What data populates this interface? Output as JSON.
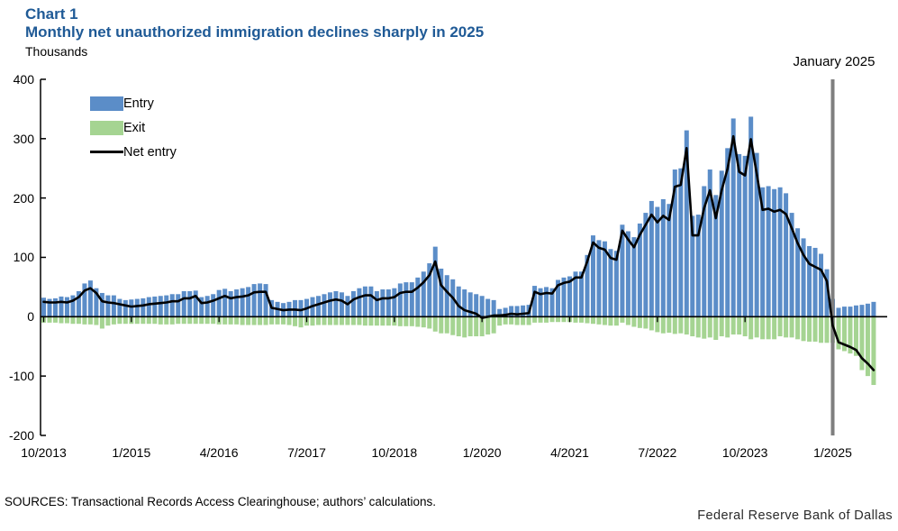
{
  "header": {
    "chart_label": "Chart 1",
    "title": "Monthly net unauthorized immigration declines sharply in 2025",
    "units_label": "Thousands"
  },
  "legend": [
    {
      "label": "Entry",
      "color": "#5b8dc8",
      "marker": "bar"
    },
    {
      "label": "Exit",
      "color": "#a5d492",
      "marker": "bar"
    },
    {
      "label": "Net entry",
      "color": "#000000",
      "marker": "line"
    }
  ],
  "annotation": {
    "label": "January 2025",
    "line_color": "#7f7f7f",
    "month_index": 135
  },
  "footer": {
    "sources": "SOURCES: Transactional Records Access Clearinghouse; authors’ calculations.",
    "attribution": "Federal Reserve Bank of Dallas"
  },
  "colors": {
    "title_blue": "#1f5a96",
    "entry_bar": "#5b8dc8",
    "exit_bar": "#a5d492",
    "net_line": "#000000",
    "annotation_line": "#7f7f7f",
    "axis": "#000000"
  },
  "chart_data": {
    "type": "bar",
    "title": "Monthly net unauthorized immigration declines sharply in 2025",
    "ylabel": "Thousands",
    "ylim": [
      -200,
      400
    ],
    "y_ticks": [
      400,
      300,
      200,
      100,
      0,
      -100,
      -200
    ],
    "frequency": "monthly",
    "start_month": "10/2013",
    "x_tick_indices": [
      0,
      15,
      30,
      45,
      60,
      75,
      90,
      105,
      120,
      135
    ],
    "x_tick_labels": [
      "10/2013",
      "1/2015",
      "4/2016",
      "7/2017",
      "10/2018",
      "1/2020",
      "4/2021",
      "7/2022",
      "10/2023",
      "1/2025"
    ],
    "grid": false,
    "legend_position": "upper-left",
    "series": [
      {
        "name": "Entry",
        "type": "bar",
        "color": "#5b8dc8",
        "values": [
          32,
          30,
          31,
          34,
          33,
          36,
          43,
          56,
          61,
          48,
          40,
          36,
          36,
          30,
          28,
          29,
          30,
          31,
          33,
          34,
          35,
          36,
          38,
          38,
          43,
          43,
          44,
          33,
          35,
          38,
          45,
          47,
          43,
          46,
          48,
          50,
          55,
          56,
          55,
          28,
          25,
          23,
          25,
          28,
          28,
          30,
          33,
          35,
          38,
          41,
          43,
          41,
          35,
          43,
          48,
          51,
          51,
          43,
          46,
          46,
          48,
          56,
          58,
          58,
          66,
          76,
          90,
          118,
          81,
          70,
          63,
          51,
          46,
          41,
          38,
          35,
          30,
          28,
          13,
          15,
          18,
          18,
          19,
          20,
          52,
          48,
          50,
          48,
          62,
          66,
          68,
          76,
          76,
          104,
          137,
          129,
          127,
          114,
          111,
          155,
          144,
          134,
          157,
          175,
          195,
          185,
          198,
          190,
          248,
          250,
          314,
          170,
          172,
          220,
          248,
          205,
          246,
          284,
          334,
          274,
          271,
          337,
          276,
          218,
          220,
          215,
          218,
          208,
          175,
          149,
          132,
          119,
          116,
          106,
          80,
          30,
          15,
          17,
          17,
          19,
          20,
          22,
          25
        ]
      },
      {
        "name": "Exit",
        "type": "bar",
        "color": "#a5d492",
        "values": [
          -10,
          -10,
          -10,
          -11,
          -11,
          -12,
          -12,
          -13,
          -13,
          -14,
          -20,
          -15,
          -13,
          -12,
          -12,
          -12,
          -12,
          -12,
          -12,
          -12,
          -13,
          -13,
          -13,
          -12,
          -12,
          -12,
          -12,
          -12,
          -12,
          -12,
          -13,
          -13,
          -13,
          -13,
          -14,
          -14,
          -14,
          -14,
          -14,
          -13,
          -13,
          -13,
          -14,
          -16,
          -18,
          -15,
          -15,
          -14,
          -14,
          -14,
          -14,
          -14,
          -14,
          -14,
          -14,
          -15,
          -15,
          -15,
          -15,
          -15,
          -15,
          -16,
          -16,
          -16,
          -17,
          -18,
          -20,
          -25,
          -28,
          -28,
          -31,
          -33,
          -35,
          -33,
          -33,
          -33,
          -30,
          -28,
          -15,
          -13,
          -13,
          -14,
          -14,
          -14,
          -10,
          -10,
          -10,
          -9,
          -9,
          -9,
          -9,
          -10,
          -10,
          -11,
          -12,
          -13,
          -14,
          -15,
          -15,
          -10,
          -14,
          -17,
          -19,
          -20,
          -23,
          -26,
          -28,
          -27,
          -29,
          -28,
          -30,
          -33,
          -35,
          -37,
          -35,
          -39,
          -33,
          -35,
          -30,
          -30,
          -33,
          -38,
          -35,
          -38,
          -38,
          -38,
          -33,
          -35,
          -35,
          -38,
          -41,
          -42,
          -42,
          -44,
          -44,
          -44,
          -55,
          -58,
          -62,
          -66,
          -90,
          -100,
          -115
        ]
      },
      {
        "name": "Net entry",
        "type": "line",
        "color": "#000000",
        "values": [
          25,
          24,
          24,
          25,
          24,
          27,
          33,
          44,
          48,
          40,
          26,
          24,
          23,
          21,
          19,
          17,
          18,
          19,
          21,
          22,
          23,
          24,
          26,
          26,
          31,
          31,
          35,
          23,
          24,
          27,
          31,
          35,
          31,
          33,
          34,
          36,
          41,
          42,
          42,
          15,
          13,
          11,
          12,
          12,
          11,
          14,
          18,
          21,
          24,
          27,
          29,
          27,
          21,
          29,
          33,
          36,
          36,
          28,
          31,
          31,
          33,
          40,
          42,
          42,
          49,
          58,
          70,
          93,
          53,
          42,
          32,
          18,
          11,
          8,
          5,
          -2,
          0,
          2,
          2,
          3,
          5,
          4,
          5,
          6,
          42,
          38,
          40,
          39,
          53,
          57,
          59,
          66,
          66,
          93,
          125,
          116,
          113,
          99,
          96,
          145,
          130,
          117,
          138,
          155,
          172,
          159,
          170,
          163,
          219,
          222,
          284,
          137,
          137,
          183,
          213,
          166,
          213,
          249,
          304,
          244,
          238,
          299,
          241,
          180,
          182,
          177,
          180,
          173,
          149,
          124,
          104,
          89,
          84,
          79,
          60,
          -15,
          -43,
          -47,
          -51,
          -56,
          -70,
          -79,
          -90
        ]
      }
    ]
  }
}
